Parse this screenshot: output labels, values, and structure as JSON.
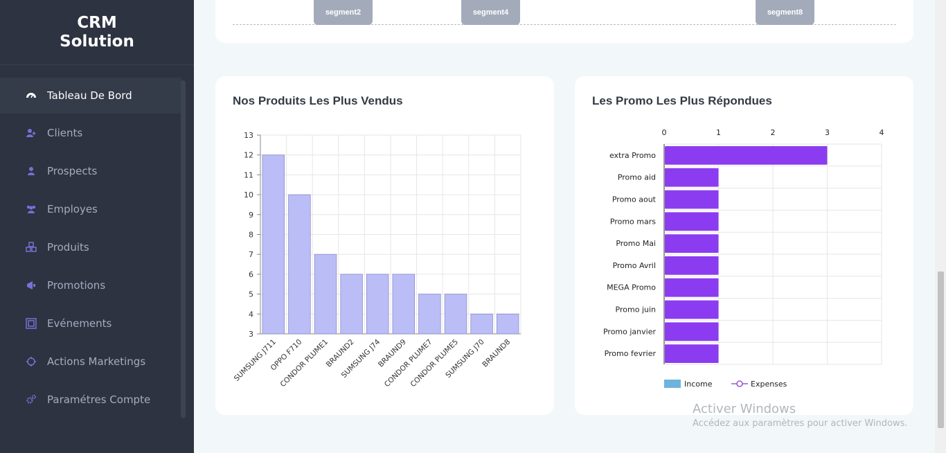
{
  "brand": {
    "line1": "CRM",
    "line2": "Solution"
  },
  "sidebar": {
    "items": [
      {
        "label": "Tableau De Bord",
        "icon": "dashboard-icon",
        "active": true
      },
      {
        "label": "Clients",
        "icon": "user-plus-icon"
      },
      {
        "label": "Prospects",
        "icon": "user-icon"
      },
      {
        "label": "Employes",
        "icon": "users-icon"
      },
      {
        "label": "Produits",
        "icon": "cubes-icon"
      },
      {
        "label": "Promotions",
        "icon": "megaphone-icon"
      },
      {
        "label": "Evénements",
        "icon": "event-frame-icon"
      },
      {
        "label": "Actions Marketings",
        "icon": "crosshair-icon"
      },
      {
        "label": "Paramétres Compte",
        "icon": "gears-icon"
      }
    ]
  },
  "top_card": {
    "segments": [
      "segment2",
      "segment4",
      "segment8"
    ]
  },
  "charts": {
    "products": {
      "title": "Nos Produits Les Plus Vendus",
      "chart_data": {
        "type": "bar",
        "categories": [
          "SUMSUNG J711",
          "OPPO F710",
          "CONDOR PLUME1",
          "BRAUND2",
          "SUMSUNG J74",
          "BRAUND9",
          "CONDOR PLUME7",
          "CONDOR PLUME5",
          "SUMSUNG J70",
          "BRAUND8"
        ],
        "values": [
          12,
          10,
          7,
          6,
          6,
          6,
          5,
          5,
          4,
          4
        ],
        "ylim": [
          3,
          13
        ],
        "yticks": [
          "3",
          "4",
          "5",
          "6",
          "7",
          "8",
          "9",
          "10",
          "11",
          "12",
          "13"
        ],
        "xlabel": "",
        "ylabel": "",
        "color": "#bbbdf6"
      }
    },
    "promos": {
      "title": "Les Promo Les Plus Répondues",
      "chart_data": {
        "type": "bar",
        "orientation": "horizontal",
        "categories": [
          "extra Promo",
          "Promo aid",
          "Promo aout",
          "Promo mars",
          "Promo Mai",
          "Promo Avril",
          "MEGA Promo",
          "Promo juin",
          "Promo janvier",
          "Promo fevrier"
        ],
        "values": [
          3,
          1,
          1,
          1,
          1,
          1,
          1,
          1,
          1,
          1
        ],
        "xlim": [
          0,
          4
        ],
        "xticks": [
          "0",
          "1",
          "2",
          "3",
          "4"
        ],
        "legend": [
          "Income",
          "Expenses"
        ],
        "legend_position": "bottom",
        "color": "#8c3cf0",
        "income_color": "#6eb4dc",
        "expenses_color": "#9a5ad0"
      }
    }
  },
  "watermark": {
    "title": "Activer Windows",
    "subtitle": "Accédez aux paramètres pour activer Windows."
  }
}
